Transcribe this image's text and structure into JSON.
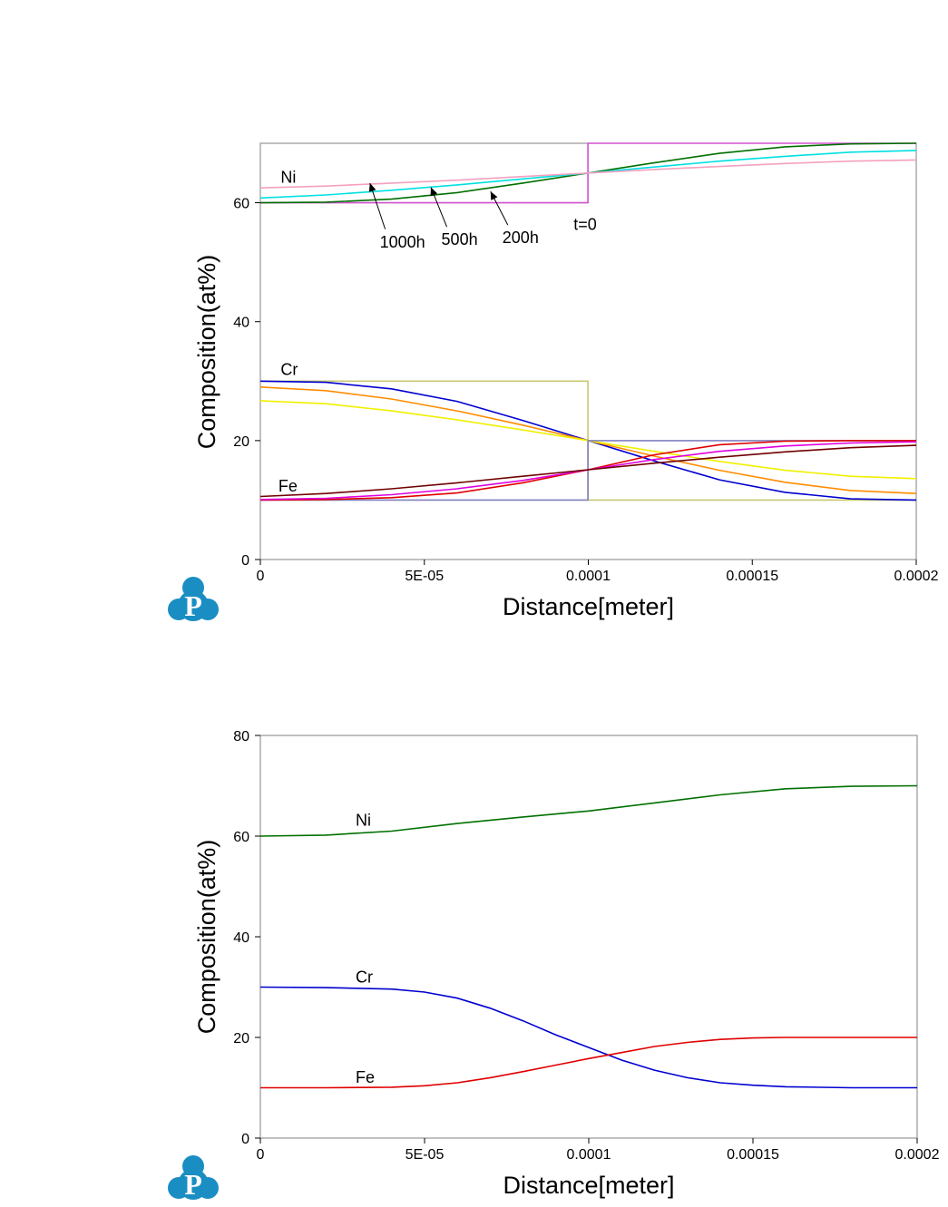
{
  "logo": {
    "letter": "P",
    "color": "#1a8ec3"
  },
  "chart_data": [
    {
      "type": "line",
      "xlabel": "Distance[meter]",
      "ylabel": "Composition(at%)",
      "xlim": [
        0,
        0.0002
      ],
      "ylim": [
        0,
        70
      ],
      "xticks": [
        0,
        5e-05,
        0.0001,
        0.00015,
        0.0002
      ],
      "xtick_labels": [
        "0",
        "5E-05",
        "0.0001",
        "0.00015",
        "0.0002"
      ],
      "yticks": [
        0,
        20,
        40,
        60
      ],
      "ytick_labels": [
        "0",
        "20",
        "40",
        "60"
      ],
      "grid": false,
      "annotations": [
        {
          "text": "Ni",
          "x": 6.2e-06,
          "y": 63.4
        },
        {
          "text": "Cr",
          "x": 6.2e-06,
          "y": 31.0
        },
        {
          "text": "Fe",
          "x": 5.5e-06,
          "y": 11.4
        },
        {
          "text": "1000h",
          "x": 3.64e-05,
          "y": 52.5,
          "arrow_to": [
            3.34e-05,
            63.3
          ]
        },
        {
          "text": "500h",
          "x": 5.52e-05,
          "y": 52.9,
          "arrow_to": [
            5.2e-05,
            62.6
          ]
        },
        {
          "text": "200h",
          "x": 7.38e-05,
          "y": 53.2,
          "arrow_to": [
            7.02e-05,
            61.9
          ]
        },
        {
          "text": "t=0",
          "x": 9.55e-05,
          "y": 55.4
        }
      ],
      "series": [
        {
          "element": "Ni",
          "time": "t=0",
          "color": "#d050d0",
          "x": [
            0,
            9.99e-05,
            9.99e-05,
            0.0002
          ],
          "y": [
            60,
            60,
            70,
            70
          ]
        },
        {
          "element": "Ni",
          "time": "200h",
          "color": "#007000",
          "x": [
            0,
            2e-05,
            4e-05,
            6e-05,
            8e-05,
            0.0001,
            0.00012,
            0.00014,
            0.00016,
            0.00018,
            0.0002
          ],
          "y": [
            60.0,
            60.1,
            60.6,
            61.7,
            63.3,
            65.0,
            66.7,
            68.3,
            69.4,
            69.9,
            70.0
          ]
        },
        {
          "element": "Ni",
          "time": "500h",
          "color": "#00e0e0",
          "x": [
            0,
            2e-05,
            4e-05,
            6e-05,
            8e-05,
            0.0001,
            0.00012,
            0.00014,
            0.00016,
            0.00018,
            0.0002
          ],
          "y": [
            60.8,
            61.3,
            62.1,
            63.0,
            64.0,
            65.0,
            66.0,
            67.0,
            67.8,
            68.5,
            68.8
          ]
        },
        {
          "element": "Ni",
          "time": "1000h",
          "color": "#f4a0c0",
          "x": [
            0,
            2e-05,
            4e-05,
            6e-05,
            8e-05,
            0.0001,
            0.00012,
            0.00014,
            0.00016,
            0.00018,
            0.0002
          ],
          "y": [
            62.5,
            62.8,
            63.3,
            63.8,
            64.4,
            65.0,
            65.6,
            66.1,
            66.6,
            67.0,
            67.2
          ]
        },
        {
          "element": "Cr",
          "time": "t=0",
          "color": "#c8c870",
          "x": [
            0,
            9.99e-05,
            9.99e-05,
            0.0002
          ],
          "y": [
            30,
            30,
            10,
            10
          ]
        },
        {
          "element": "Cr",
          "time": "200h",
          "color": "#0000d0",
          "x": [
            0,
            2e-05,
            4e-05,
            6e-05,
            8e-05,
            0.0001,
            0.00012,
            0.00014,
            0.00016,
            0.00018,
            0.0002
          ],
          "y": [
            30.0,
            29.8,
            28.7,
            26.6,
            23.4,
            20.0,
            16.6,
            13.4,
            11.3,
            10.2,
            10.0
          ]
        },
        {
          "element": "Cr",
          "time": "500h",
          "color": "#ff8c00",
          "x": [
            0,
            2e-05,
            4e-05,
            6e-05,
            8e-05,
            0.0001,
            0.00012,
            0.00014,
            0.00016,
            0.00018,
            0.0002
          ],
          "y": [
            29.0,
            28.4,
            27.0,
            25.0,
            22.6,
            20.0,
            17.4,
            15.0,
            13.0,
            11.6,
            11.1
          ]
        },
        {
          "element": "Cr",
          "time": "1000h",
          "color": "#f0f000",
          "x": [
            0,
            2e-05,
            4e-05,
            6e-05,
            8e-05,
            0.0001,
            0.00012,
            0.00014,
            0.00016,
            0.00018,
            0.0002
          ],
          "y": [
            26.7,
            26.2,
            25.0,
            23.5,
            21.8,
            20.0,
            18.2,
            16.5,
            15.0,
            14.0,
            13.6
          ]
        },
        {
          "element": "Fe",
          "time": "t=0",
          "color": "#8080c0",
          "x": [
            0,
            9.99e-05,
            9.99e-05,
            0.0002
          ],
          "y": [
            10,
            10,
            20,
            20
          ]
        },
        {
          "element": "Fe",
          "time": "200h",
          "color": "#e00000",
          "x": [
            0,
            2e-05,
            4e-05,
            6e-05,
            8e-05,
            0.0001,
            0.00012,
            0.00014,
            0.00016,
            0.00018,
            0.0002
          ],
          "y": [
            10.0,
            10.1,
            10.4,
            11.2,
            12.9,
            15.1,
            17.6,
            19.3,
            19.9,
            20.0,
            20.0
          ]
        },
        {
          "element": "Fe",
          "time": "500h",
          "color": "#e000e0",
          "x": [
            0,
            2e-05,
            4e-05,
            6e-05,
            8e-05,
            0.0001,
            0.00012,
            0.00014,
            0.00016,
            0.00018,
            0.0002
          ],
          "y": [
            10.1,
            10.3,
            10.9,
            11.9,
            13.3,
            15.1,
            16.8,
            18.2,
            19.1,
            19.6,
            19.8
          ]
        },
        {
          "element": "Fe",
          "time": "1000h",
          "color": "#700000",
          "x": [
            0,
            2e-05,
            4e-05,
            6e-05,
            8e-05,
            0.0001,
            0.00012,
            0.00014,
            0.00016,
            0.00018,
            0.0002
          ],
          "y": [
            10.6,
            11.1,
            11.9,
            12.9,
            14.0,
            15.1,
            16.2,
            17.2,
            18.1,
            18.8,
            19.2
          ]
        }
      ]
    },
    {
      "type": "line",
      "xlabel": "Distance[meter]",
      "ylabel": "Composition(at%)",
      "xlim": [
        0,
        0.0002
      ],
      "ylim": [
        0,
        80
      ],
      "xticks": [
        0,
        5e-05,
        0.0001,
        0.00015,
        0.0002
      ],
      "xtick_labels": [
        "0",
        "5E-05",
        "0.0001",
        "0.00015",
        "0.0002"
      ],
      "yticks": [
        0,
        20,
        40,
        60,
        80
      ],
      "ytick_labels": [
        "0",
        "20",
        "40",
        "60",
        "80"
      ],
      "grid": false,
      "annotations": [
        {
          "text": "Ni",
          "x": 2.9e-05,
          "y": 62.1
        },
        {
          "text": "Cr",
          "x": 2.9e-05,
          "y": 30.9
        },
        {
          "text": "Fe",
          "x": 2.9e-05,
          "y": 11.0
        }
      ],
      "series": [
        {
          "element": "Ni",
          "color": "#007000",
          "x": [
            0,
            2e-05,
            4e-05,
            6e-05,
            8e-05,
            0.0001,
            0.00012,
            0.00014,
            0.00016,
            0.00018,
            0.0002
          ],
          "y": [
            60.0,
            60.2,
            61.0,
            62.5,
            63.8,
            65.0,
            66.6,
            68.2,
            69.4,
            69.9,
            70.0
          ]
        },
        {
          "element": "Cr",
          "color": "#0000d0",
          "x": [
            0,
            2e-05,
            4e-05,
            5e-05,
            6e-05,
            7e-05,
            8e-05,
            9e-05,
            0.0001,
            0.00011,
            0.00012,
            0.00013,
            0.00014,
            0.00015,
            0.00016,
            0.00018,
            0.0002
          ],
          "y": [
            30.0,
            29.9,
            29.6,
            29.0,
            27.8,
            25.8,
            23.3,
            20.5,
            18.0,
            15.5,
            13.5,
            12.0,
            11.0,
            10.5,
            10.2,
            10.0,
            10.0
          ]
        },
        {
          "element": "Fe",
          "color": "#e00000",
          "x": [
            0,
            2e-05,
            4e-05,
            5e-05,
            6e-05,
            7e-05,
            8e-05,
            9e-05,
            0.0001,
            0.00011,
            0.00012,
            0.00013,
            0.00014,
            0.00015,
            0.00016,
            0.00018,
            0.0002
          ],
          "y": [
            10.0,
            10.0,
            10.1,
            10.4,
            11.0,
            12.0,
            13.2,
            14.5,
            15.8,
            17.0,
            18.2,
            19.0,
            19.6,
            19.9,
            20.0,
            20.0,
            20.0
          ]
        }
      ]
    }
  ]
}
